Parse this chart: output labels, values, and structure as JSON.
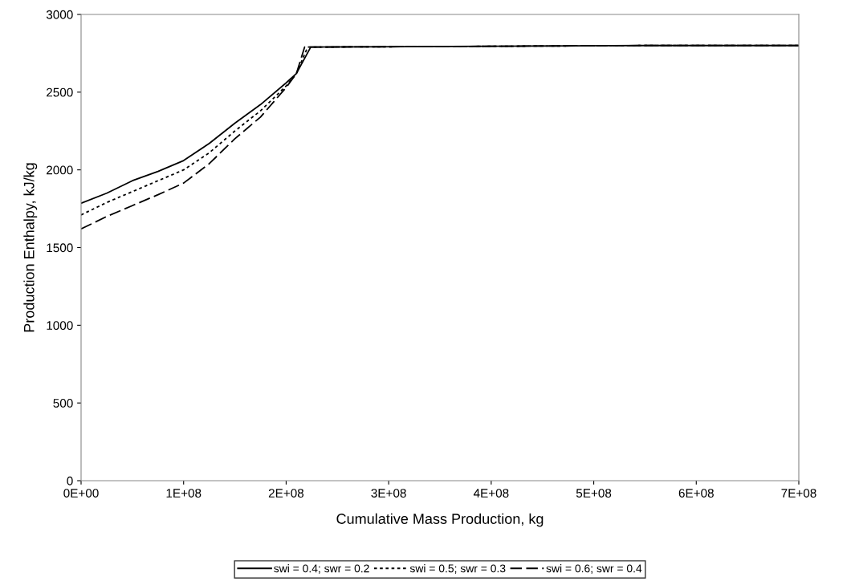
{
  "chart_data": {
    "type": "line",
    "xlabel": "Cumulative Mass Production, kg",
    "ylabel": "Production Enthalpy, kJ/kg",
    "xlim": [
      0,
      700000000
    ],
    "ylim": [
      0,
      3000
    ],
    "xticks": [
      {
        "value": 0,
        "label": "0E+00"
      },
      {
        "value": 100000000,
        "label": "1E+08"
      },
      {
        "value": 200000000,
        "label": "2E+08"
      },
      {
        "value": 300000000,
        "label": "3E+08"
      },
      {
        "value": 400000000,
        "label": "4E+08"
      },
      {
        "value": 500000000,
        "label": "5E+08"
      },
      {
        "value": 600000000,
        "label": "6E+08"
      },
      {
        "value": 700000000,
        "label": "7E+08"
      }
    ],
    "yticks": [
      0,
      500,
      1000,
      1500,
      2000,
      2500,
      3000
    ],
    "grid": false,
    "legend": "bottom",
    "marker": "none",
    "series": [
      {
        "name": "swi = 0.4; swr = 0.2",
        "color": "#000000",
        "line_style": "solid",
        "x": [
          0,
          25000000,
          50000000,
          75000000,
          100000000,
          125000000,
          150000000,
          175000000,
          200000000,
          210000000,
          224000000,
          400000000,
          550000000,
          700000000
        ],
        "values": [
          1785,
          1850,
          1930,
          1990,
          2060,
          2170,
          2300,
          2420,
          2560,
          2620,
          2790,
          2795,
          2800,
          2800
        ]
      },
      {
        "name": "swi = 0.5; swr = 0.3",
        "color": "#000000",
        "line_style": "dotted",
        "x": [
          0,
          25000000,
          50000000,
          75000000,
          100000000,
          125000000,
          150000000,
          175000000,
          200000000,
          210000000,
          221000000,
          400000000,
          550000000,
          700000000
        ],
        "values": [
          1710,
          1790,
          1860,
          1930,
          2000,
          2110,
          2250,
          2380,
          2540,
          2620,
          2790,
          2795,
          2800,
          2800
        ]
      },
      {
        "name": "swi = 0.6; swr = 0.4",
        "color": "#000000",
        "line_style": "dashed",
        "x": [
          0,
          25000000,
          50000000,
          75000000,
          100000000,
          125000000,
          150000000,
          175000000,
          200000000,
          210000000,
          218000000,
          400000000,
          550000000,
          700000000
        ],
        "values": [
          1620,
          1700,
          1770,
          1840,
          1915,
          2040,
          2200,
          2340,
          2530,
          2620,
          2790,
          2795,
          2800,
          2800
        ]
      }
    ]
  }
}
